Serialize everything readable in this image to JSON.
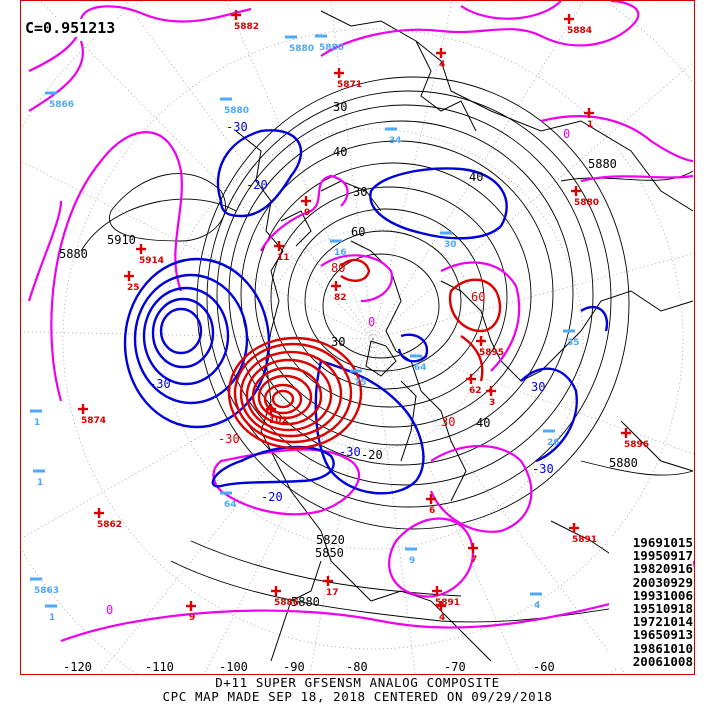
{
  "correlation_label": "C=0.951213",
  "analog_dates": [
    "19691015",
    "19950917",
    "19820916",
    "20030929",
    "19931006",
    "19510918",
    "19721014",
    "19650913",
    "19861010",
    "20061008"
  ],
  "footer": {
    "line1": "D+11 SUPER GFSENSM ANALOG COMPOSITE",
    "line2": "CPC MAP MADE SEP 18, 2018 CENTERED ON 09/29/2018"
  },
  "colors": {
    "negative": "#0000dd",
    "positive": "#dd0000",
    "zero": "#ee00ee",
    "height": "#000000",
    "negative_marker": "#4fa8ff",
    "frame": "#d40000"
  },
  "longitude_labels": [
    "-120",
    "-110",
    "-100",
    "-90",
    "-80",
    "-70",
    "-60"
  ],
  "contour_labels": [
    "30",
    "40",
    "5880",
    "5910",
    "30",
    "80",
    "60",
    "40",
    "30",
    "-30",
    "-20",
    "0",
    "-30",
    "60",
    "40",
    "30",
    "-30",
    "5880",
    "5880",
    "-30",
    "5850",
    "5880",
    "-20",
    "0",
    "-30",
    "-20",
    "30",
    "0",
    "5820"
  ],
  "markers": [
    {
      "sign": "+",
      "value": "5882"
    },
    {
      "sign": "-",
      "value": "5880"
    },
    {
      "sign": "+",
      "value": "4"
    },
    {
      "sign": "+",
      "value": "5871"
    },
    {
      "sign": "-",
      "value": "5880"
    },
    {
      "sign": "+",
      "value": "5884"
    },
    {
      "sign": "-",
      "value": "5866"
    },
    {
      "sign": "-",
      "value": "5880"
    },
    {
      "sign": "+",
      "value": "1"
    },
    {
      "sign": "-",
      "value": "34"
    },
    {
      "sign": "+",
      "value": "5880"
    },
    {
      "sign": "+",
      "value": "9"
    },
    {
      "sign": "+",
      "value": "5914"
    },
    {
      "sign": "+",
      "value": "25"
    },
    {
      "sign": "-",
      "value": "16"
    },
    {
      "sign": "+",
      "value": "11"
    },
    {
      "sign": "-",
      "value": "30"
    },
    {
      "sign": "+",
      "value": "82"
    },
    {
      "sign": "+",
      "value": "102"
    },
    {
      "sign": "+",
      "value": "62"
    },
    {
      "sign": "-",
      "value": "75"
    },
    {
      "sign": "-",
      "value": "64"
    },
    {
      "sign": "+",
      "value": "5874"
    },
    {
      "sign": "-",
      "value": "1"
    },
    {
      "sign": "-",
      "value": "1"
    },
    {
      "sign": "+",
      "value": "5862"
    },
    {
      "sign": "-",
      "value": "64"
    },
    {
      "sign": "-",
      "value": "26"
    },
    {
      "sign": "+",
      "value": "6"
    },
    {
      "sign": "-",
      "value": "35"
    },
    {
      "sign": "+",
      "value": "5896"
    },
    {
      "sign": "+",
      "value": "5891"
    },
    {
      "sign": "-",
      "value": "9"
    },
    {
      "sign": "+",
      "value": "7"
    },
    {
      "sign": "+",
      "value": "17"
    },
    {
      "sign": "+",
      "value": "5886"
    },
    {
      "sign": "+",
      "value": "5891"
    },
    {
      "sign": "+",
      "value": "4"
    },
    {
      "sign": "-",
      "value": "4"
    },
    {
      "sign": "+",
      "value": "9"
    },
    {
      "sign": "-",
      "value": "5863"
    },
    {
      "sign": "-",
      "value": "1"
    },
    {
      "sign": "+",
      "value": "5895"
    },
    {
      "sign": "+",
      "value": "3"
    }
  ]
}
